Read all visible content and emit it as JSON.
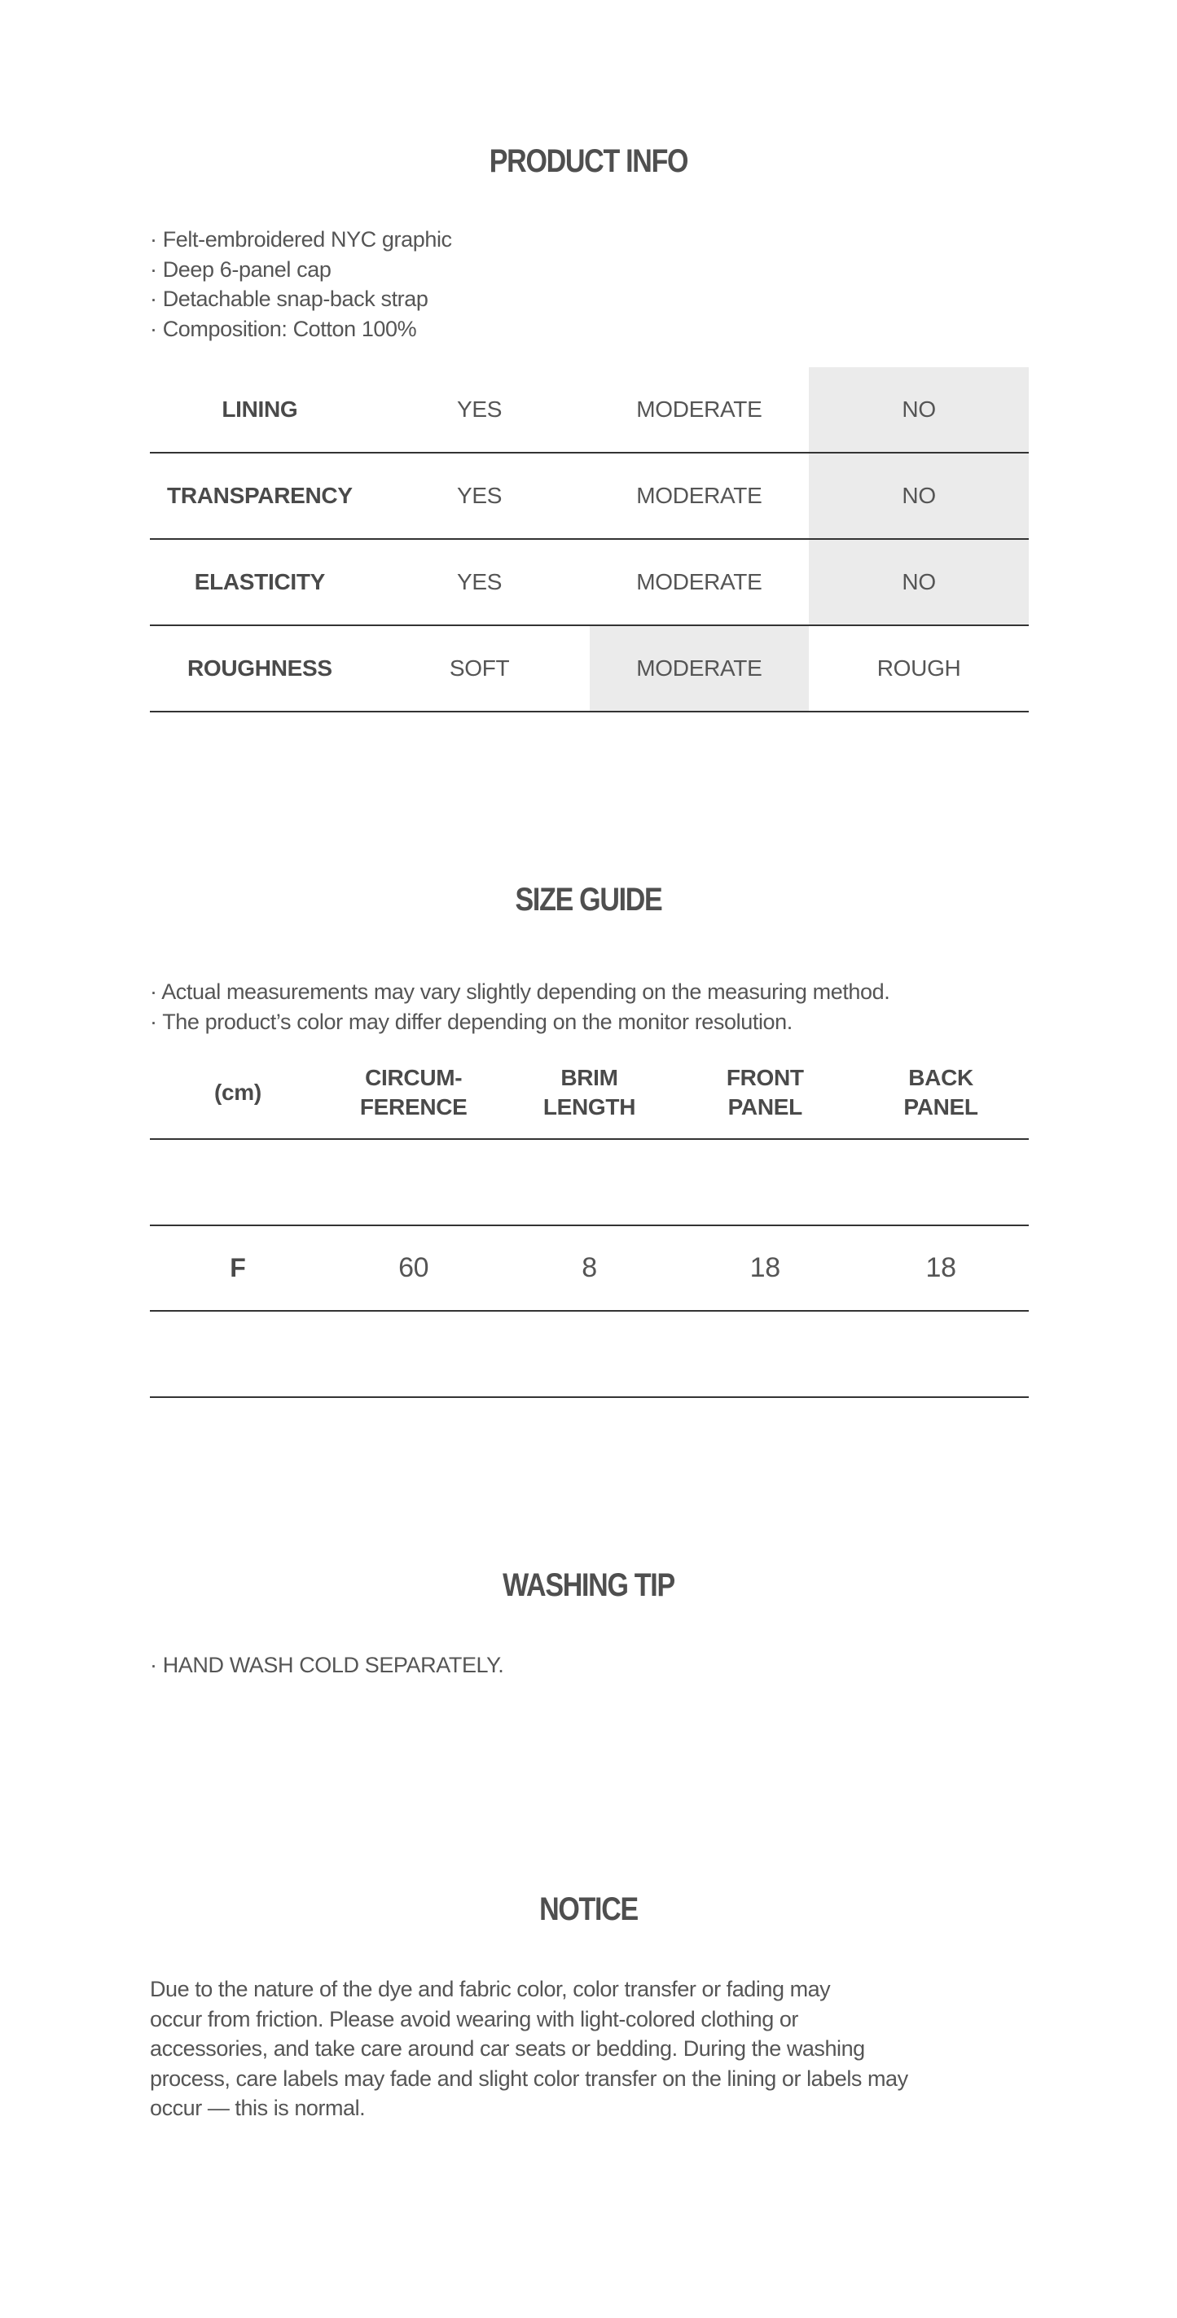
{
  "product_info": {
    "title": "PRODUCT INFO",
    "bullets": [
      "· Felt-embroidered NYC graphic",
      "· Deep 6-panel cap",
      "· Detachable snap-back strap",
      "· Composition: Cotton 100%"
    ],
    "table": [
      {
        "label": "LINING",
        "options": [
          "YES",
          "MODERATE",
          "NO"
        ],
        "selected": "NO"
      },
      {
        "label": "TRANSPARENCY",
        "options": [
          "YES",
          "MODERATE",
          "NO"
        ],
        "selected": "NO"
      },
      {
        "label": "ELASTICITY",
        "options": [
          "YES",
          "MODERATE",
          "NO"
        ],
        "selected": "NO"
      },
      {
        "label": "ROUGHNESS",
        "options": [
          "SOFT",
          "MODERATE",
          "ROUGH"
        ],
        "selected": "MODERATE"
      }
    ],
    "highlight_color": "#ebebeb"
  },
  "size_guide": {
    "title": "SIZE GUIDE",
    "bullets": [
      "· Actual measurements may vary slightly depending on the measuring method.",
      "· The product’s color may differ depending on the monitor resolution."
    ],
    "headers": [
      [
        "(cm)"
      ],
      [
        "CIRCUM-",
        "FERENCE"
      ],
      [
        "BRIM",
        "LENGTH"
      ],
      [
        "FRONT",
        "PANEL"
      ],
      [
        "BACK",
        "PANEL"
      ]
    ],
    "rows": [
      [
        "",
        "",
        "",
        "",
        ""
      ],
      [
        "F",
        "60",
        "8",
        "18",
        "18"
      ],
      [
        "",
        "",
        "",
        "",
        ""
      ]
    ]
  },
  "washing_tip": {
    "title": "WASHING TIP",
    "bullets": [
      "· HAND WASH COLD SEPARATELY."
    ]
  },
  "notice": {
    "title": "NOTICE",
    "lines": [
      "Due to the nature of the dye and fabric color, color transfer or fading may",
      "occur from friction. Please avoid wearing with light-colored clothing or",
      "accessories, and take care around car seats or bedding. During the washing",
      "process, care labels may fade and slight color transfer on the lining or labels may",
      "occur — this is normal."
    ]
  }
}
